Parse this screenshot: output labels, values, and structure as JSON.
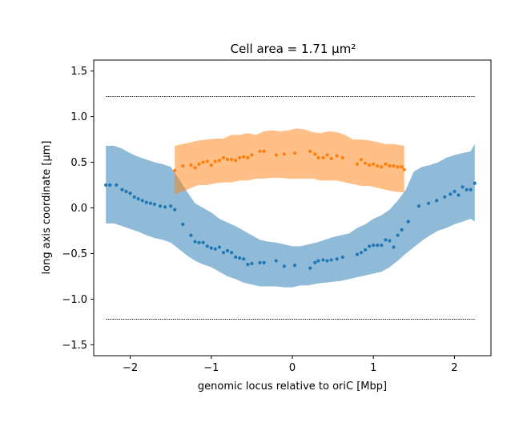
{
  "chart_data": {
    "type": "scatter",
    "title": "Cell area = 1.71 μm²",
    "xlabel": "genomic locus relative to oriC [Mbp]",
    "ylabel": "long axis coordinate [μm]",
    "xlim": [
      -2.45,
      2.45
    ],
    "ylim": [
      -1.62,
      1.62
    ],
    "xticks": [
      -2,
      -1,
      0,
      1,
      2
    ],
    "xtick_labels": [
      "−2",
      "−1",
      "0",
      "1",
      "2"
    ],
    "yticks": [
      -1.5,
      -1.0,
      -0.5,
      0.0,
      0.5,
      1.0,
      1.5
    ],
    "ytick_labels": [
      "−1.5",
      "−1.0",
      "−0.5",
      "0.0",
      "0.5",
      "1.0",
      "1.5"
    ],
    "grid": false,
    "reference_lines": [
      {
        "y": 1.22,
        "x": [
          -2.3,
          2.25
        ],
        "style": "dotted",
        "color": "#000000"
      },
      {
        "y": -1.22,
        "x": [
          -2.3,
          2.25
        ],
        "style": "dotted",
        "color": "#000000"
      }
    ],
    "series": [
      {
        "color": "#1f77b4",
        "band_color": "#1f77b4",
        "band_opacity": 0.5,
        "x": [
          -2.3,
          -2.25,
          -2.17,
          -2.1,
          -2.05,
          -2.0,
          -1.95,
          -1.9,
          -1.85,
          -1.8,
          -1.75,
          -1.7,
          -1.63,
          -1.57,
          -1.5,
          -1.45,
          -1.35,
          -1.25,
          -1.2,
          -1.15,
          -1.1,
          -1.05,
          -1.0,
          -0.95,
          -0.9,
          -0.85,
          -0.8,
          -0.75,
          -0.7,
          -0.65,
          -0.6,
          -0.55,
          -0.5,
          -0.4,
          -0.35,
          -0.2,
          -0.1,
          0.03,
          0.22,
          0.28,
          0.32,
          0.38,
          0.43,
          0.48,
          0.55,
          0.62,
          0.8,
          0.85,
          0.9,
          0.95,
          1.0,
          1.05,
          1.1,
          1.15,
          1.2,
          1.25,
          1.3,
          1.35,
          1.43,
          1.56,
          1.68,
          1.78,
          1.88,
          1.95,
          2.0,
          2.05,
          2.1,
          2.15,
          2.2,
          2.25
        ],
        "y": [
          0.25,
          0.25,
          0.25,
          0.2,
          0.18,
          0.16,
          0.12,
          0.1,
          0.08,
          0.06,
          0.05,
          0.04,
          0.02,
          0.01,
          0.02,
          -0.02,
          -0.18,
          -0.3,
          -0.37,
          -0.38,
          -0.38,
          -0.42,
          -0.44,
          -0.45,
          -0.43,
          -0.49,
          -0.47,
          -0.49,
          -0.54,
          -0.55,
          -0.56,
          -0.62,
          -0.61,
          -0.6,
          -0.6,
          -0.58,
          -0.64,
          -0.63,
          -0.66,
          -0.6,
          -0.58,
          -0.57,
          -0.58,
          -0.57,
          -0.56,
          -0.54,
          -0.51,
          -0.49,
          -0.46,
          -0.42,
          -0.41,
          -0.41,
          -0.41,
          -0.35,
          -0.36,
          -0.43,
          -0.3,
          -0.24,
          -0.15,
          0.02,
          0.05,
          0.08,
          0.12,
          0.15,
          0.18,
          0.14,
          0.23,
          0.2,
          0.2,
          0.27
        ],
        "band_x": [
          -2.3,
          -2.2,
          -2.1,
          -2.0,
          -1.9,
          -1.8,
          -1.7,
          -1.6,
          -1.5,
          -1.4,
          -1.3,
          -1.2,
          -1.1,
          -1.0,
          -0.9,
          -0.8,
          -0.7,
          -0.6,
          -0.5,
          -0.4,
          -0.3,
          -0.2,
          -0.1,
          0.0,
          0.1,
          0.2,
          0.3,
          0.4,
          0.5,
          0.6,
          0.7,
          0.8,
          0.9,
          1.0,
          1.1,
          1.2,
          1.3,
          1.4,
          1.5,
          1.6,
          1.7,
          1.8,
          1.9,
          2.0,
          2.1,
          2.2,
          2.25
        ],
        "band_upper": [
          0.68,
          0.68,
          0.65,
          0.6,
          0.56,
          0.53,
          0.5,
          0.48,
          0.45,
          0.32,
          0.18,
          0.05,
          0.0,
          -0.05,
          -0.12,
          -0.16,
          -0.2,
          -0.25,
          -0.3,
          -0.35,
          -0.37,
          -0.38,
          -0.4,
          -0.42,
          -0.42,
          -0.4,
          -0.38,
          -0.35,
          -0.32,
          -0.3,
          -0.28,
          -0.22,
          -0.18,
          -0.12,
          -0.08,
          -0.02,
          0.08,
          0.2,
          0.4,
          0.45,
          0.47,
          0.5,
          0.55,
          0.58,
          0.6,
          0.62,
          0.7
        ],
        "band_lower": [
          -0.17,
          -0.17,
          -0.2,
          -0.23,
          -0.26,
          -0.3,
          -0.33,
          -0.35,
          -0.38,
          -0.45,
          -0.52,
          -0.58,
          -0.62,
          -0.65,
          -0.7,
          -0.75,
          -0.78,
          -0.82,
          -0.84,
          -0.86,
          -0.86,
          -0.86,
          -0.87,
          -0.87,
          -0.85,
          -0.85,
          -0.83,
          -0.82,
          -0.81,
          -0.8,
          -0.78,
          -0.76,
          -0.74,
          -0.72,
          -0.7,
          -0.65,
          -0.58,
          -0.5,
          -0.43,
          -0.36,
          -0.3,
          -0.25,
          -0.22,
          -0.18,
          -0.15,
          -0.12,
          -0.15
        ]
      },
      {
        "color": "#ff7f0e",
        "band_color": "#ff7f0e",
        "band_opacity": 0.5,
        "x": [
          -1.45,
          -1.35,
          -1.25,
          -1.2,
          -1.15,
          -1.1,
          -1.05,
          -1.0,
          -0.95,
          -0.9,
          -0.85,
          -0.8,
          -0.75,
          -0.7,
          -0.65,
          -0.6,
          -0.55,
          -0.5,
          -0.4,
          -0.35,
          -0.2,
          -0.1,
          0.03,
          0.22,
          0.28,
          0.32,
          0.38,
          0.43,
          0.48,
          0.55,
          0.62,
          0.8,
          0.85,
          0.9,
          0.95,
          1.0,
          1.05,
          1.1,
          1.15,
          1.2,
          1.25,
          1.3,
          1.35,
          1.38
        ],
        "y": [
          0.41,
          0.46,
          0.47,
          0.44,
          0.48,
          0.5,
          0.51,
          0.47,
          0.51,
          0.52,
          0.55,
          0.53,
          0.53,
          0.52,
          0.55,
          0.56,
          0.55,
          0.58,
          0.62,
          0.62,
          0.58,
          0.59,
          0.6,
          0.62,
          0.59,
          0.55,
          0.55,
          0.58,
          0.54,
          0.57,
          0.55,
          0.48,
          0.53,
          0.49,
          0.47,
          0.48,
          0.46,
          0.45,
          0.48,
          0.46,
          0.46,
          0.45,
          0.45,
          0.42
        ],
        "band_x": [
          -1.45,
          -1.35,
          -1.25,
          -1.15,
          -1.05,
          -0.95,
          -0.85,
          -0.75,
          -0.65,
          -0.55,
          -0.45,
          -0.35,
          -0.25,
          -0.15,
          -0.05,
          0.05,
          0.15,
          0.25,
          0.35,
          0.45,
          0.55,
          0.65,
          0.75,
          0.85,
          0.95,
          1.05,
          1.15,
          1.25,
          1.38
        ],
        "band_upper": [
          0.68,
          0.7,
          0.72,
          0.74,
          0.75,
          0.76,
          0.76,
          0.8,
          0.8,
          0.82,
          0.8,
          0.84,
          0.85,
          0.84,
          0.85,
          0.87,
          0.86,
          0.83,
          0.82,
          0.84,
          0.83,
          0.8,
          0.75,
          0.75,
          0.74,
          0.72,
          0.7,
          0.7,
          0.68
        ],
        "band_lower": [
          0.15,
          0.18,
          0.22,
          0.25,
          0.25,
          0.27,
          0.28,
          0.28,
          0.3,
          0.3,
          0.32,
          0.32,
          0.33,
          0.33,
          0.32,
          0.32,
          0.32,
          0.32,
          0.3,
          0.3,
          0.3,
          0.28,
          0.26,
          0.24,
          0.24,
          0.22,
          0.2,
          0.18,
          0.17
        ]
      }
    ]
  }
}
